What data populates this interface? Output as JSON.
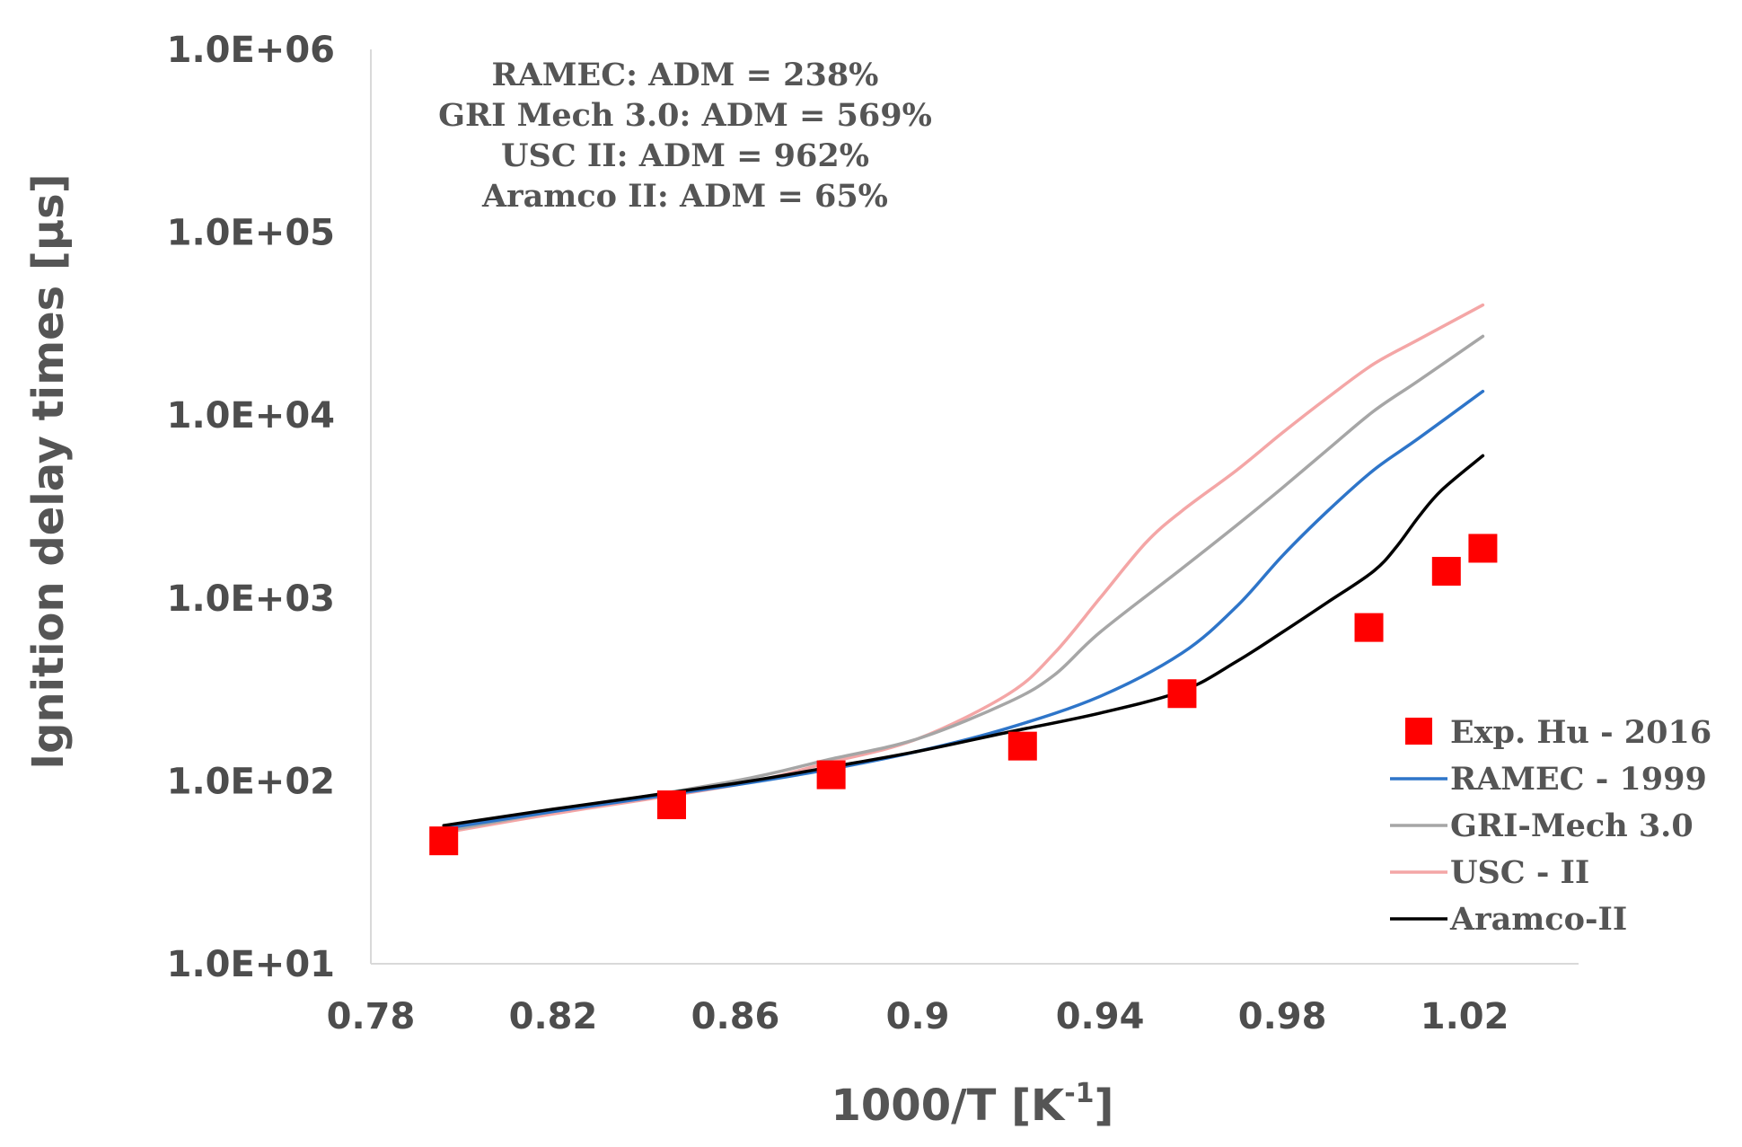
{
  "chart_data": {
    "type": "line",
    "title": "",
    "xlabel": "1000/T [K",
    "xlabel_sup": "-1",
    "xlabel_suffix": "]",
    "ylabel": "Ignition delay times [µs]",
    "xlim": [
      0.78,
      1.045
    ],
    "ylim": [
      10,
      1000000
    ],
    "yscale": "log",
    "x_ticks": [
      0.78,
      0.82,
      0.86,
      0.9,
      0.94,
      0.98,
      1.02
    ],
    "x_tick_labels": [
      "0.78",
      "0.82",
      "0.86",
      "0.9",
      "0.94",
      "0.98",
      "1.02"
    ],
    "y_ticks": [
      10,
      100,
      1000,
      10000,
      100000,
      1000000
    ],
    "y_tick_labels": [
      "1.0E+01",
      "1.0E+02",
      "1.0E+03",
      "1.0E+04",
      "1.0E+05",
      "1.0E+06"
    ],
    "grid": false,
    "legend_position": "bottom-right",
    "annotations": [
      "RAMEC: ADM = 238%",
      "GRI Mech 3.0: ADM = 569%",
      "USC II: ADM = 962%",
      "Aramco II: ADM = 65%"
    ],
    "series": [
      {
        "name": "Exp. Hu - 2016",
        "kind": "scatter",
        "marker": "square",
        "color": "#ff0000",
        "x": [
          0.796,
          0.846,
          0.881,
          0.923,
          0.958,
          0.999,
          1.016,
          1.024
        ],
        "y": [
          47,
          74,
          108,
          155,
          300,
          690,
          1400,
          1870
        ]
      },
      {
        "name": "RAMEC - 1999",
        "kind": "line",
        "color": "#2e75c9",
        "x": [
          0.796,
          0.82,
          0.86,
          0.88,
          0.9,
          0.92,
          0.94,
          0.958,
          0.97,
          0.98,
          0.99,
          1.0,
          1.01,
          1.024
        ],
        "y": [
          55,
          68,
          95,
          115,
          145,
          195,
          290,
          500,
          900,
          1700,
          3000,
          5000,
          7500,
          13500
        ]
      },
      {
        "name": "GRI-Mech 3.0",
        "kind": "line",
        "color": "#a6a6a6",
        "x": [
          0.796,
          0.82,
          0.86,
          0.88,
          0.9,
          0.92,
          0.93,
          0.94,
          0.958,
          0.97,
          0.98,
          0.99,
          1.0,
          1.01,
          1.024
        ],
        "y": [
          53,
          68,
          100,
          130,
          170,
          270,
          380,
          650,
          1450,
          2500,
          4000,
          6500,
          10500,
          15500,
          27000
        ]
      },
      {
        "name": "USC - II",
        "kind": "line",
        "color": "#f4a6a6",
        "x": [
          0.796,
          0.82,
          0.86,
          0.88,
          0.9,
          0.92,
          0.93,
          0.94,
          0.95,
          0.958,
          0.97,
          0.98,
          0.99,
          1.0,
          1.01,
          1.024
        ],
        "y": [
          52,
          66,
          95,
          125,
          170,
          300,
          500,
          1000,
          2000,
          3000,
          5000,
          8000,
          12500,
          19000,
          26000,
          40000
        ]
      },
      {
        "name": "Aramco-II",
        "kind": "line",
        "color": "#000000",
        "x": [
          0.796,
          0.82,
          0.86,
          0.88,
          0.9,
          0.92,
          0.94,
          0.958,
          0.97,
          0.98,
          0.99,
          1.0,
          1.005,
          1.01,
          1.015,
          1.024
        ],
        "y": [
          57,
          70,
          97,
          118,
          145,
          185,
          235,
          310,
          450,
          650,
          950,
          1400,
          1900,
          2800,
          3900,
          6000
        ]
      }
    ]
  }
}
